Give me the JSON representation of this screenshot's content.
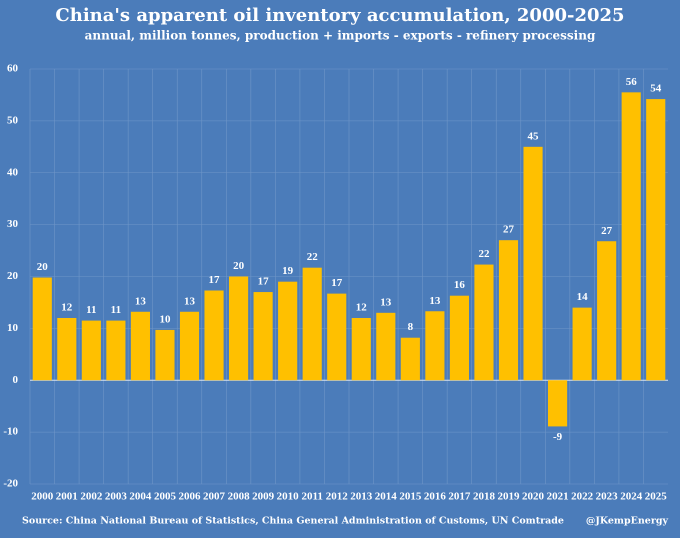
{
  "chart_data": {
    "type": "bar",
    "title": "China's apparent oil inventory accumulation, 2000-2025",
    "subtitle": "annual, million tonnes, production + imports - exports - refinery processing",
    "source": "Source: China National Bureau of Statistics, China General Administration of Customs, UN Comtrade",
    "credit": "@JKempEnergy",
    "categories": [
      "2000",
      "2001",
      "2002",
      "2003",
      "2004",
      "2005",
      "2006",
      "2007",
      "2008",
      "2009",
      "2010",
      "2011",
      "2012",
      "2013",
      "2014",
      "2015",
      "2016",
      "2017",
      "2018",
      "2019",
      "2020",
      "2021",
      "2022",
      "2023",
      "2024",
      "2025"
    ],
    "values": [
      19.8,
      12,
      11.5,
      11.5,
      13.2,
      9.7,
      13.2,
      17.3,
      20,
      17,
      19,
      21.7,
      16.7,
      12,
      13,
      8.2,
      13.3,
      16.3,
      22.3,
      27,
      45,
      -8.9,
      14,
      26.8,
      55.5,
      54.2
    ],
    "value_labels": [
      "20",
      "12",
      "11",
      "11",
      "13",
      "10",
      "13",
      "17",
      "20",
      "17",
      "19",
      "22",
      "17",
      "12",
      "13",
      "8",
      "13",
      "16",
      "22",
      "27",
      "45",
      "-9",
      "14",
      "27",
      "56",
      "54"
    ],
    "color": "#ffc000",
    "ylim": [
      -20,
      60
    ],
    "yticks": [
      -20,
      -10,
      0,
      10,
      20,
      30,
      40,
      50,
      60
    ],
    "grid": true
  }
}
